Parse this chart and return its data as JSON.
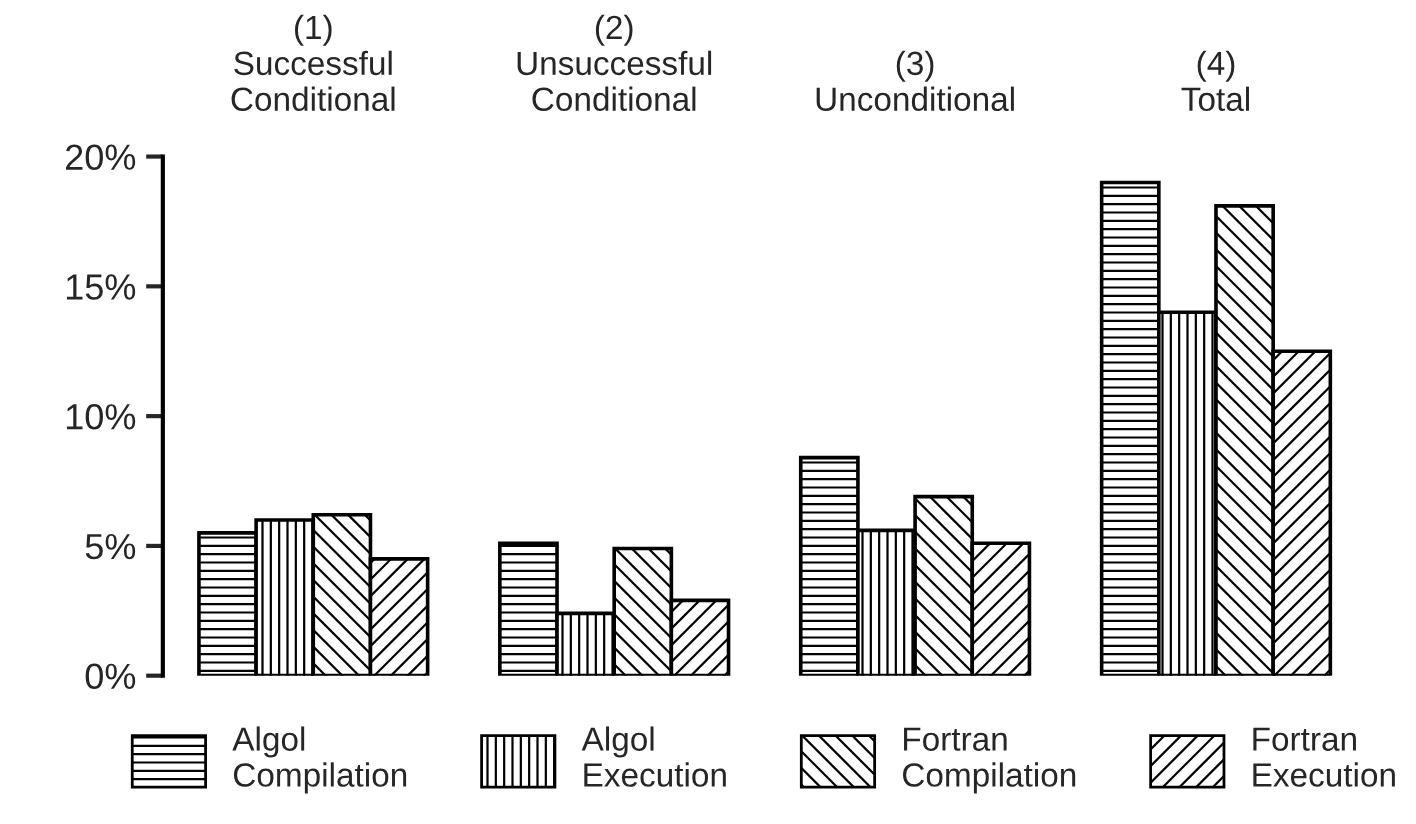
{
  "chart_data": {
    "type": "bar",
    "categories": [
      "(1)\nSuccessful\nConditional",
      "(2)\nUnsuccessful\nConditional",
      "(3)\nUnconditional",
      "(4)\nTotal"
    ],
    "series": [
      {
        "name": "Algol\nCompilation",
        "color": "#000000",
        "values": [
          5.5,
          5.1,
          8.4,
          19.0
        ]
      },
      {
        "name": "Algol\nExecution",
        "color": "#000000",
        "values": [
          6.0,
          2.4,
          5.6,
          14.0
        ]
      },
      {
        "name": "Fortran\nCompilation",
        "color": "#000000",
        "values": [
          6.2,
          4.9,
          6.9,
          18.1
        ]
      },
      {
        "name": "Fortran\nExecution",
        "color": "#000000",
        "values": [
          4.5,
          2.9,
          5.1,
          12.5
        ]
      }
    ],
    "ylim": [
      0,
      20
    ],
    "yticks": [
      {
        "value": 0,
        "label": "0%"
      },
      {
        "value": 5,
        "label": "5%"
      },
      {
        "value": 10,
        "label": "10%"
      },
      {
        "value": 15,
        "label": "15%"
      },
      {
        "value": 20,
        "label": "20%"
      }
    ],
    "grid": false,
    "legend": "bottom"
  }
}
